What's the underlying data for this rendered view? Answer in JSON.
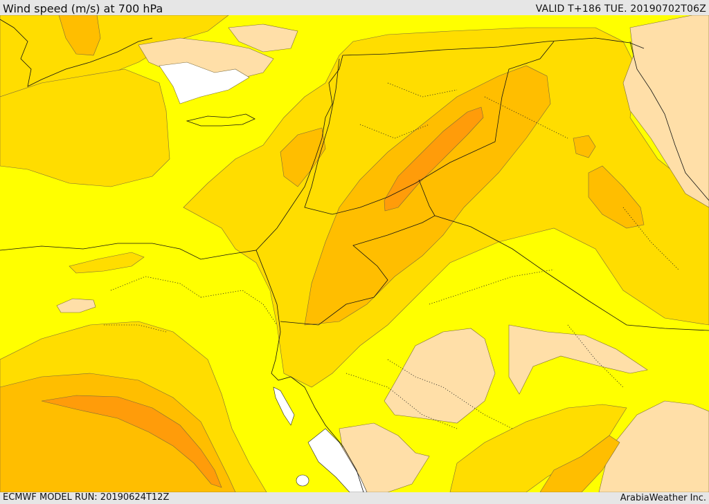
{
  "header": {
    "title": "Wind speed (m/s) at 700 hPa",
    "valid": "VALID T+186 TUE. 20190702T06Z"
  },
  "footer": {
    "model_run": "ECMWF MODEL RUN: 20190624T12Z",
    "provider": "ArabiaWeather Inc."
  },
  "map": {
    "variable": "wind speed",
    "unit": "m/s",
    "level": "700 hPa",
    "shading_colors": {
      "lowest": "#ffffff",
      "low": "#ffdfa8",
      "moderate": "#ffff00",
      "elevated": "#ffdd00",
      "high": "#ffbe00",
      "very_high": "#ff9c0a"
    }
  }
}
